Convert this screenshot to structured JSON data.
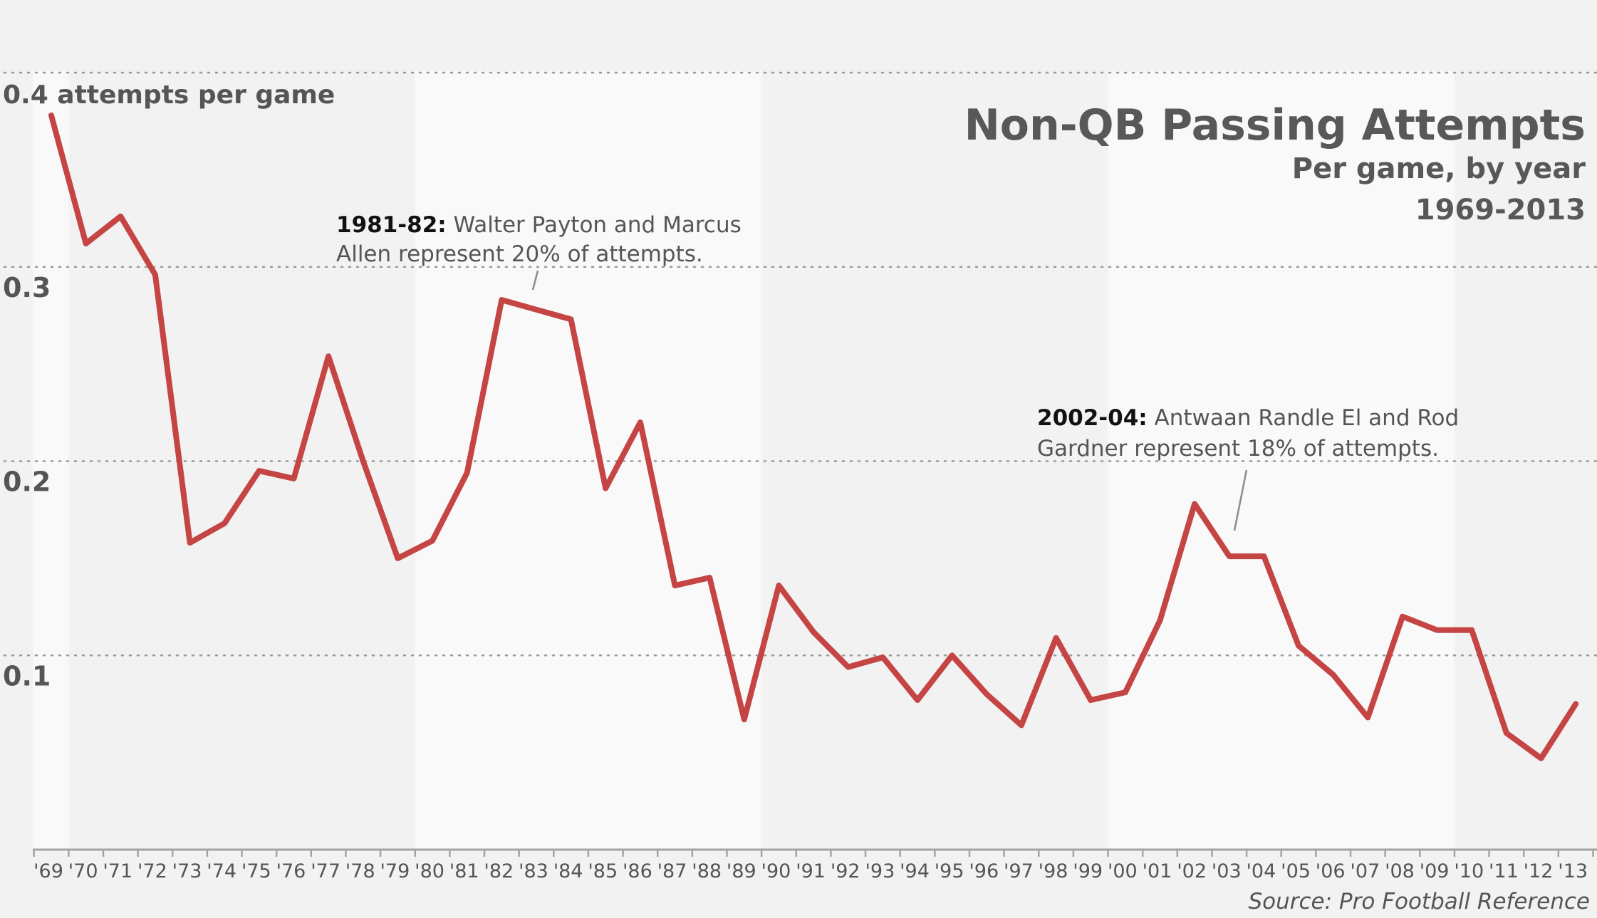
{
  "chart_data": {
    "type": "line",
    "title": "Non-QB Passing Attempts",
    "subtitle": [
      "Per game, by year",
      "1969-2013"
    ],
    "ylabel": "0.4 attempts per game",
    "ylim": [
      0,
      0.42
    ],
    "yticks": [
      {
        "value": 0.4,
        "label": "0.4"
      },
      {
        "value": 0.3,
        "label": "0.3"
      },
      {
        "value": 0.2,
        "label": "0.2"
      },
      {
        "value": 0.1,
        "label": "0.1"
      }
    ],
    "grid": true,
    "categories": [
      "'69",
      "'70",
      "'71",
      "'72",
      "'73",
      "'74",
      "'75",
      "'76",
      "'77",
      "'78",
      "'79",
      "'80",
      "'81",
      "'82",
      "'83",
      "'84",
      "'85",
      "'86",
      "'87",
      "'88",
      "'89",
      "'90",
      "'91",
      "'92",
      "'93",
      "'94",
      "'95",
      "'96",
      "'97",
      "'98",
      "'99",
      "'00",
      "'01",
      "'02",
      "'03",
      "'04",
      "'05",
      "'06",
      "'07",
      "'08",
      "'09",
      "'10",
      "'11",
      "'12",
      "'13"
    ],
    "series": [
      {
        "color": "#c54444",
        "values": [
          0.378,
          0.312,
          0.326,
          0.296,
          0.158,
          0.168,
          0.195,
          0.191,
          0.254,
          0.2,
          0.15,
          0.159,
          0.194,
          0.283,
          0.278,
          0.273,
          0.186,
          0.22,
          0.136,
          0.14,
          0.067,
          0.136,
          0.112,
          0.094,
          0.099,
          0.077,
          0.1,
          0.08,
          0.064,
          0.109,
          0.077,
          0.081,
          0.118,
          0.178,
          0.151,
          0.151,
          0.105,
          0.09,
          0.068,
          0.12,
          0.113,
          0.113,
          0.06,
          0.047,
          0.075
        ]
      }
    ],
    "annotations": [
      {
        "bold": "1981-82:",
        "lines": [
          " Walter Payton and Marcus",
          "Allen represent 20% of attempts."
        ]
      },
      {
        "bold": "2002-04:",
        "lines": [
          " Antwaan Randle El and Rod",
          "Gardner represent 18% of attempts."
        ]
      }
    ],
    "source": "Source: Pro Football Reference"
  }
}
